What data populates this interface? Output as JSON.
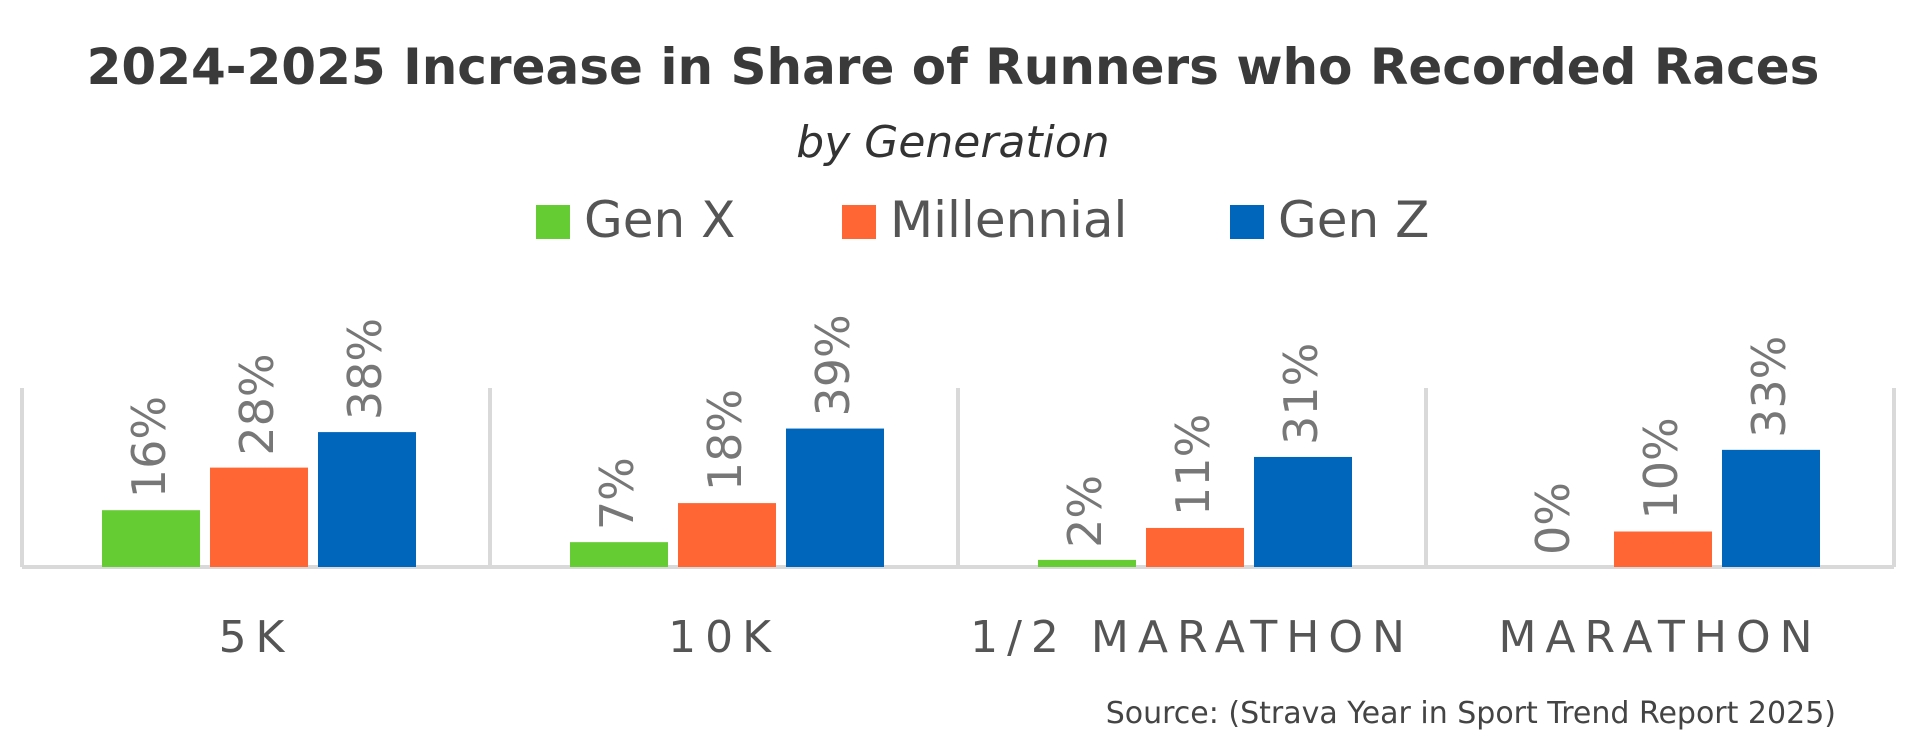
{
  "chart_data": {
    "type": "bar",
    "title": "2024-2025 Increase in Share of Runners who Recorded Races",
    "subtitle": "by Generation",
    "categories": [
      "5K",
      "10K",
      "1/2 MARATHON",
      "MARATHON"
    ],
    "series": [
      {
        "name": "Gen X",
        "color": "#66cc33",
        "values": [
          16,
          7,
          2,
          0
        ],
        "labels": [
          "16%",
          "7%",
          "2%",
          "0%"
        ]
      },
      {
        "name": "Millennial",
        "color": "#ff6633",
        "values": [
          28,
          18,
          11,
          10
        ],
        "labels": [
          "28%",
          "18%",
          "11%",
          "10%"
        ]
      },
      {
        "name": "Gen Z",
        "color": "#0066bb",
        "values": [
          38,
          39,
          31,
          33
        ],
        "labels": [
          "38%",
          "39%",
          "31%",
          "33%"
        ]
      }
    ],
    "ylim": [
      0,
      40
    ],
    "xlabel": "",
    "ylabel": "",
    "legend": "top-center",
    "source": "Source: (Strava Year in Sport Trend Report 2025)"
  }
}
